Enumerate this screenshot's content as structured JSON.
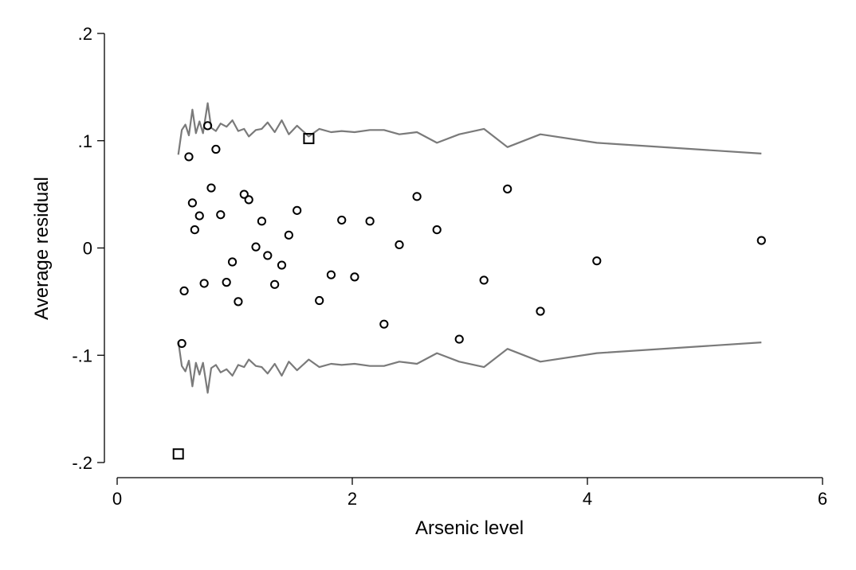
{
  "chart_data": {
    "type": "scatter",
    "xlabel": "Arsenic level",
    "ylabel": "Average residual",
    "xlim": [
      0,
      6
    ],
    "ylim": [
      -0.2,
      0.2
    ],
    "xticks": [
      {
        "value": 0,
        "label": "0"
      },
      {
        "value": 2,
        "label": "2"
      },
      {
        "value": 4,
        "label": "4"
      },
      {
        "value": 6,
        "label": "6"
      }
    ],
    "yticks": [
      {
        "value": -0.2,
        "label": "-.2"
      },
      {
        "value": -0.1,
        "label": "-.1"
      },
      {
        "value": 0,
        "label": "0"
      },
      {
        "value": 0.1,
        "label": ".1"
      },
      {
        "value": 0.2,
        "label": ".2"
      }
    ],
    "grid": false,
    "legend": "none",
    "colors": {
      "points": "#000000",
      "bounds": "#7a7a7a"
    },
    "circles": [
      {
        "x": 0.55,
        "y": -0.089
      },
      {
        "x": 0.57,
        "y": -0.04
      },
      {
        "x": 0.61,
        "y": 0.085
      },
      {
        "x": 0.64,
        "y": 0.042
      },
      {
        "x": 0.66,
        "y": 0.017
      },
      {
        "x": 0.7,
        "y": 0.03
      },
      {
        "x": 0.74,
        "y": -0.033
      },
      {
        "x": 0.77,
        "y": 0.114
      },
      {
        "x": 0.8,
        "y": 0.056
      },
      {
        "x": 0.84,
        "y": 0.092
      },
      {
        "x": 0.88,
        "y": 0.031
      },
      {
        "x": 0.93,
        "y": -0.032
      },
      {
        "x": 0.98,
        "y": -0.013
      },
      {
        "x": 1.03,
        "y": -0.05
      },
      {
        "x": 1.08,
        "y": 0.05
      },
      {
        "x": 1.12,
        "y": 0.045
      },
      {
        "x": 1.18,
        "y": 0.001
      },
      {
        "x": 1.23,
        "y": 0.025
      },
      {
        "x": 1.28,
        "y": -0.007
      },
      {
        "x": 1.34,
        "y": -0.034
      },
      {
        "x": 1.4,
        "y": -0.016
      },
      {
        "x": 1.46,
        "y": 0.012
      },
      {
        "x": 1.53,
        "y": 0.035
      },
      {
        "x": 1.72,
        "y": -0.049
      },
      {
        "x": 1.82,
        "y": -0.025
      },
      {
        "x": 1.91,
        "y": 0.026
      },
      {
        "x": 2.02,
        "y": -0.027
      },
      {
        "x": 2.15,
        "y": 0.025
      },
      {
        "x": 2.27,
        "y": -0.071
      },
      {
        "x": 2.4,
        "y": 0.003
      },
      {
        "x": 2.55,
        "y": 0.048
      },
      {
        "x": 2.72,
        "y": 0.017
      },
      {
        "x": 2.91,
        "y": -0.085
      },
      {
        "x": 3.12,
        "y": -0.03
      },
      {
        "x": 3.32,
        "y": 0.055
      },
      {
        "x": 3.6,
        "y": -0.059
      },
      {
        "x": 4.08,
        "y": -0.012
      },
      {
        "x": 5.48,
        "y": 0.007
      }
    ],
    "squares": [
      {
        "x": 0.52,
        "y": -0.192
      },
      {
        "x": 1.63,
        "y": 0.102
      }
    ],
    "upper_bound": [
      {
        "x": 0.52,
        "y": 0.087
      },
      {
        "x": 0.55,
        "y": 0.11
      },
      {
        "x": 0.58,
        "y": 0.115
      },
      {
        "x": 0.61,
        "y": 0.105
      },
      {
        "x": 0.64,
        "y": 0.129
      },
      {
        "x": 0.67,
        "y": 0.107
      },
      {
        "x": 0.7,
        "y": 0.118
      },
      {
        "x": 0.73,
        "y": 0.107
      },
      {
        "x": 0.77,
        "y": 0.135
      },
      {
        "x": 0.8,
        "y": 0.112
      },
      {
        "x": 0.84,
        "y": 0.109
      },
      {
        "x": 0.88,
        "y": 0.116
      },
      {
        "x": 0.93,
        "y": 0.113
      },
      {
        "x": 0.98,
        "y": 0.119
      },
      {
        "x": 1.03,
        "y": 0.109
      },
      {
        "x": 1.08,
        "y": 0.111
      },
      {
        "x": 1.12,
        "y": 0.104
      },
      {
        "x": 1.18,
        "y": 0.11
      },
      {
        "x": 1.23,
        "y": 0.111
      },
      {
        "x": 1.28,
        "y": 0.117
      },
      {
        "x": 1.34,
        "y": 0.108
      },
      {
        "x": 1.4,
        "y": 0.119
      },
      {
        "x": 1.46,
        "y": 0.106
      },
      {
        "x": 1.53,
        "y": 0.114
      },
      {
        "x": 1.63,
        "y": 0.104
      },
      {
        "x": 1.72,
        "y": 0.111
      },
      {
        "x": 1.82,
        "y": 0.108
      },
      {
        "x": 1.91,
        "y": 0.109
      },
      {
        "x": 2.02,
        "y": 0.108
      },
      {
        "x": 2.15,
        "y": 0.11
      },
      {
        "x": 2.27,
        "y": 0.11
      },
      {
        "x": 2.4,
        "y": 0.106
      },
      {
        "x": 2.55,
        "y": 0.108
      },
      {
        "x": 2.72,
        "y": 0.098
      },
      {
        "x": 2.91,
        "y": 0.106
      },
      {
        "x": 3.12,
        "y": 0.111
      },
      {
        "x": 3.32,
        "y": 0.094
      },
      {
        "x": 3.6,
        "y": 0.106
      },
      {
        "x": 4.08,
        "y": 0.098
      },
      {
        "x": 5.48,
        "y": 0.088
      }
    ],
    "lower_bound": [
      {
        "x": 0.52,
        "y": -0.087
      },
      {
        "x": 0.55,
        "y": -0.11
      },
      {
        "x": 0.58,
        "y": -0.115
      },
      {
        "x": 0.61,
        "y": -0.105
      },
      {
        "x": 0.64,
        "y": -0.129
      },
      {
        "x": 0.67,
        "y": -0.107
      },
      {
        "x": 0.7,
        "y": -0.118
      },
      {
        "x": 0.73,
        "y": -0.107
      },
      {
        "x": 0.77,
        "y": -0.135
      },
      {
        "x": 0.8,
        "y": -0.112
      },
      {
        "x": 0.84,
        "y": -0.109
      },
      {
        "x": 0.88,
        "y": -0.116
      },
      {
        "x": 0.93,
        "y": -0.113
      },
      {
        "x": 0.98,
        "y": -0.119
      },
      {
        "x": 1.03,
        "y": -0.109
      },
      {
        "x": 1.08,
        "y": -0.111
      },
      {
        "x": 1.12,
        "y": -0.104
      },
      {
        "x": 1.18,
        "y": -0.11
      },
      {
        "x": 1.23,
        "y": -0.111
      },
      {
        "x": 1.28,
        "y": -0.117
      },
      {
        "x": 1.34,
        "y": -0.108
      },
      {
        "x": 1.4,
        "y": -0.119
      },
      {
        "x": 1.46,
        "y": -0.106
      },
      {
        "x": 1.53,
        "y": -0.114
      },
      {
        "x": 1.63,
        "y": -0.104
      },
      {
        "x": 1.72,
        "y": -0.111
      },
      {
        "x": 1.82,
        "y": -0.108
      },
      {
        "x": 1.91,
        "y": -0.109
      },
      {
        "x": 2.02,
        "y": -0.108
      },
      {
        "x": 2.15,
        "y": -0.11
      },
      {
        "x": 2.27,
        "y": -0.11
      },
      {
        "x": 2.4,
        "y": -0.106
      },
      {
        "x": 2.55,
        "y": -0.108
      },
      {
        "x": 2.72,
        "y": -0.098
      },
      {
        "x": 2.91,
        "y": -0.106
      },
      {
        "x": 3.12,
        "y": -0.111
      },
      {
        "x": 3.32,
        "y": -0.094
      },
      {
        "x": 3.6,
        "y": -0.106
      },
      {
        "x": 4.08,
        "y": -0.098
      },
      {
        "x": 5.48,
        "y": -0.088
      }
    ]
  }
}
